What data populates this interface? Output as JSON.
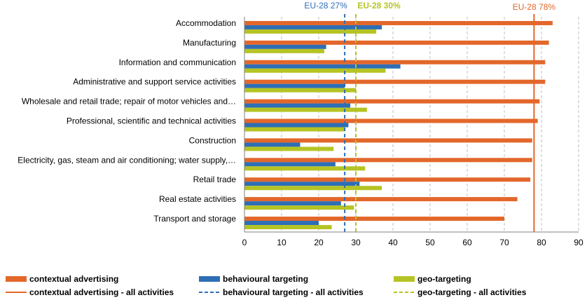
{
  "chart_data": {
    "type": "bar",
    "orientation": "horizontal",
    "categories": [
      "Accommodation",
      "Manufacturing",
      "Information and communication",
      "Administrative and support service activities",
      "Wholesale and retail trade; repair of motor vehicles and…",
      "Professional, scientific and technical activities",
      "Construction",
      "Electricity, gas, steam and air conditioning; water supply,…",
      "Retail trade",
      "Real estate activities",
      "Transport and storage"
    ],
    "series": [
      {
        "name": "contextual advertising",
        "color": "#E3672A",
        "values": [
          83,
          82,
          81,
          81,
          79.5,
          79,
          77.5,
          77.5,
          77,
          73.5,
          70
        ]
      },
      {
        "name": "behavioural targeting",
        "color": "#2E6EB5",
        "values": [
          37,
          22,
          42,
          27,
          28.5,
          28,
          15,
          24.5,
          31,
          26,
          20
        ]
      },
      {
        "name": "geo-targeting",
        "color": "#B5C424",
        "values": [
          35.5,
          21.5,
          38,
          30,
          33,
          27,
          24,
          32.5,
          37,
          29.5,
          23.5
        ]
      }
    ],
    "reference_lines": [
      {
        "name": "contextual advertising - all activities",
        "value": 78,
        "label": "EU-28 78%",
        "color": "#E3672A",
        "style": "solid"
      },
      {
        "name": "behavioural targeting - all activities",
        "value": 27,
        "label": "EU-28 27%",
        "color": "#2E6EB5",
        "style": "dashed"
      },
      {
        "name": "geo-targeting - all activities",
        "value": 30,
        "label": "EU-28 30%",
        "color": "#B5C424",
        "style": "dashed"
      }
    ],
    "xlim": [
      0,
      90
    ],
    "xticks": [
      "0",
      "10",
      "20",
      "30",
      "40",
      "50",
      "60",
      "70",
      "80",
      "90"
    ],
    "grid": "vertical-dashed",
    "legend_position": "bottom",
    "title": "",
    "xlabel": "",
    "ylabel": ""
  }
}
